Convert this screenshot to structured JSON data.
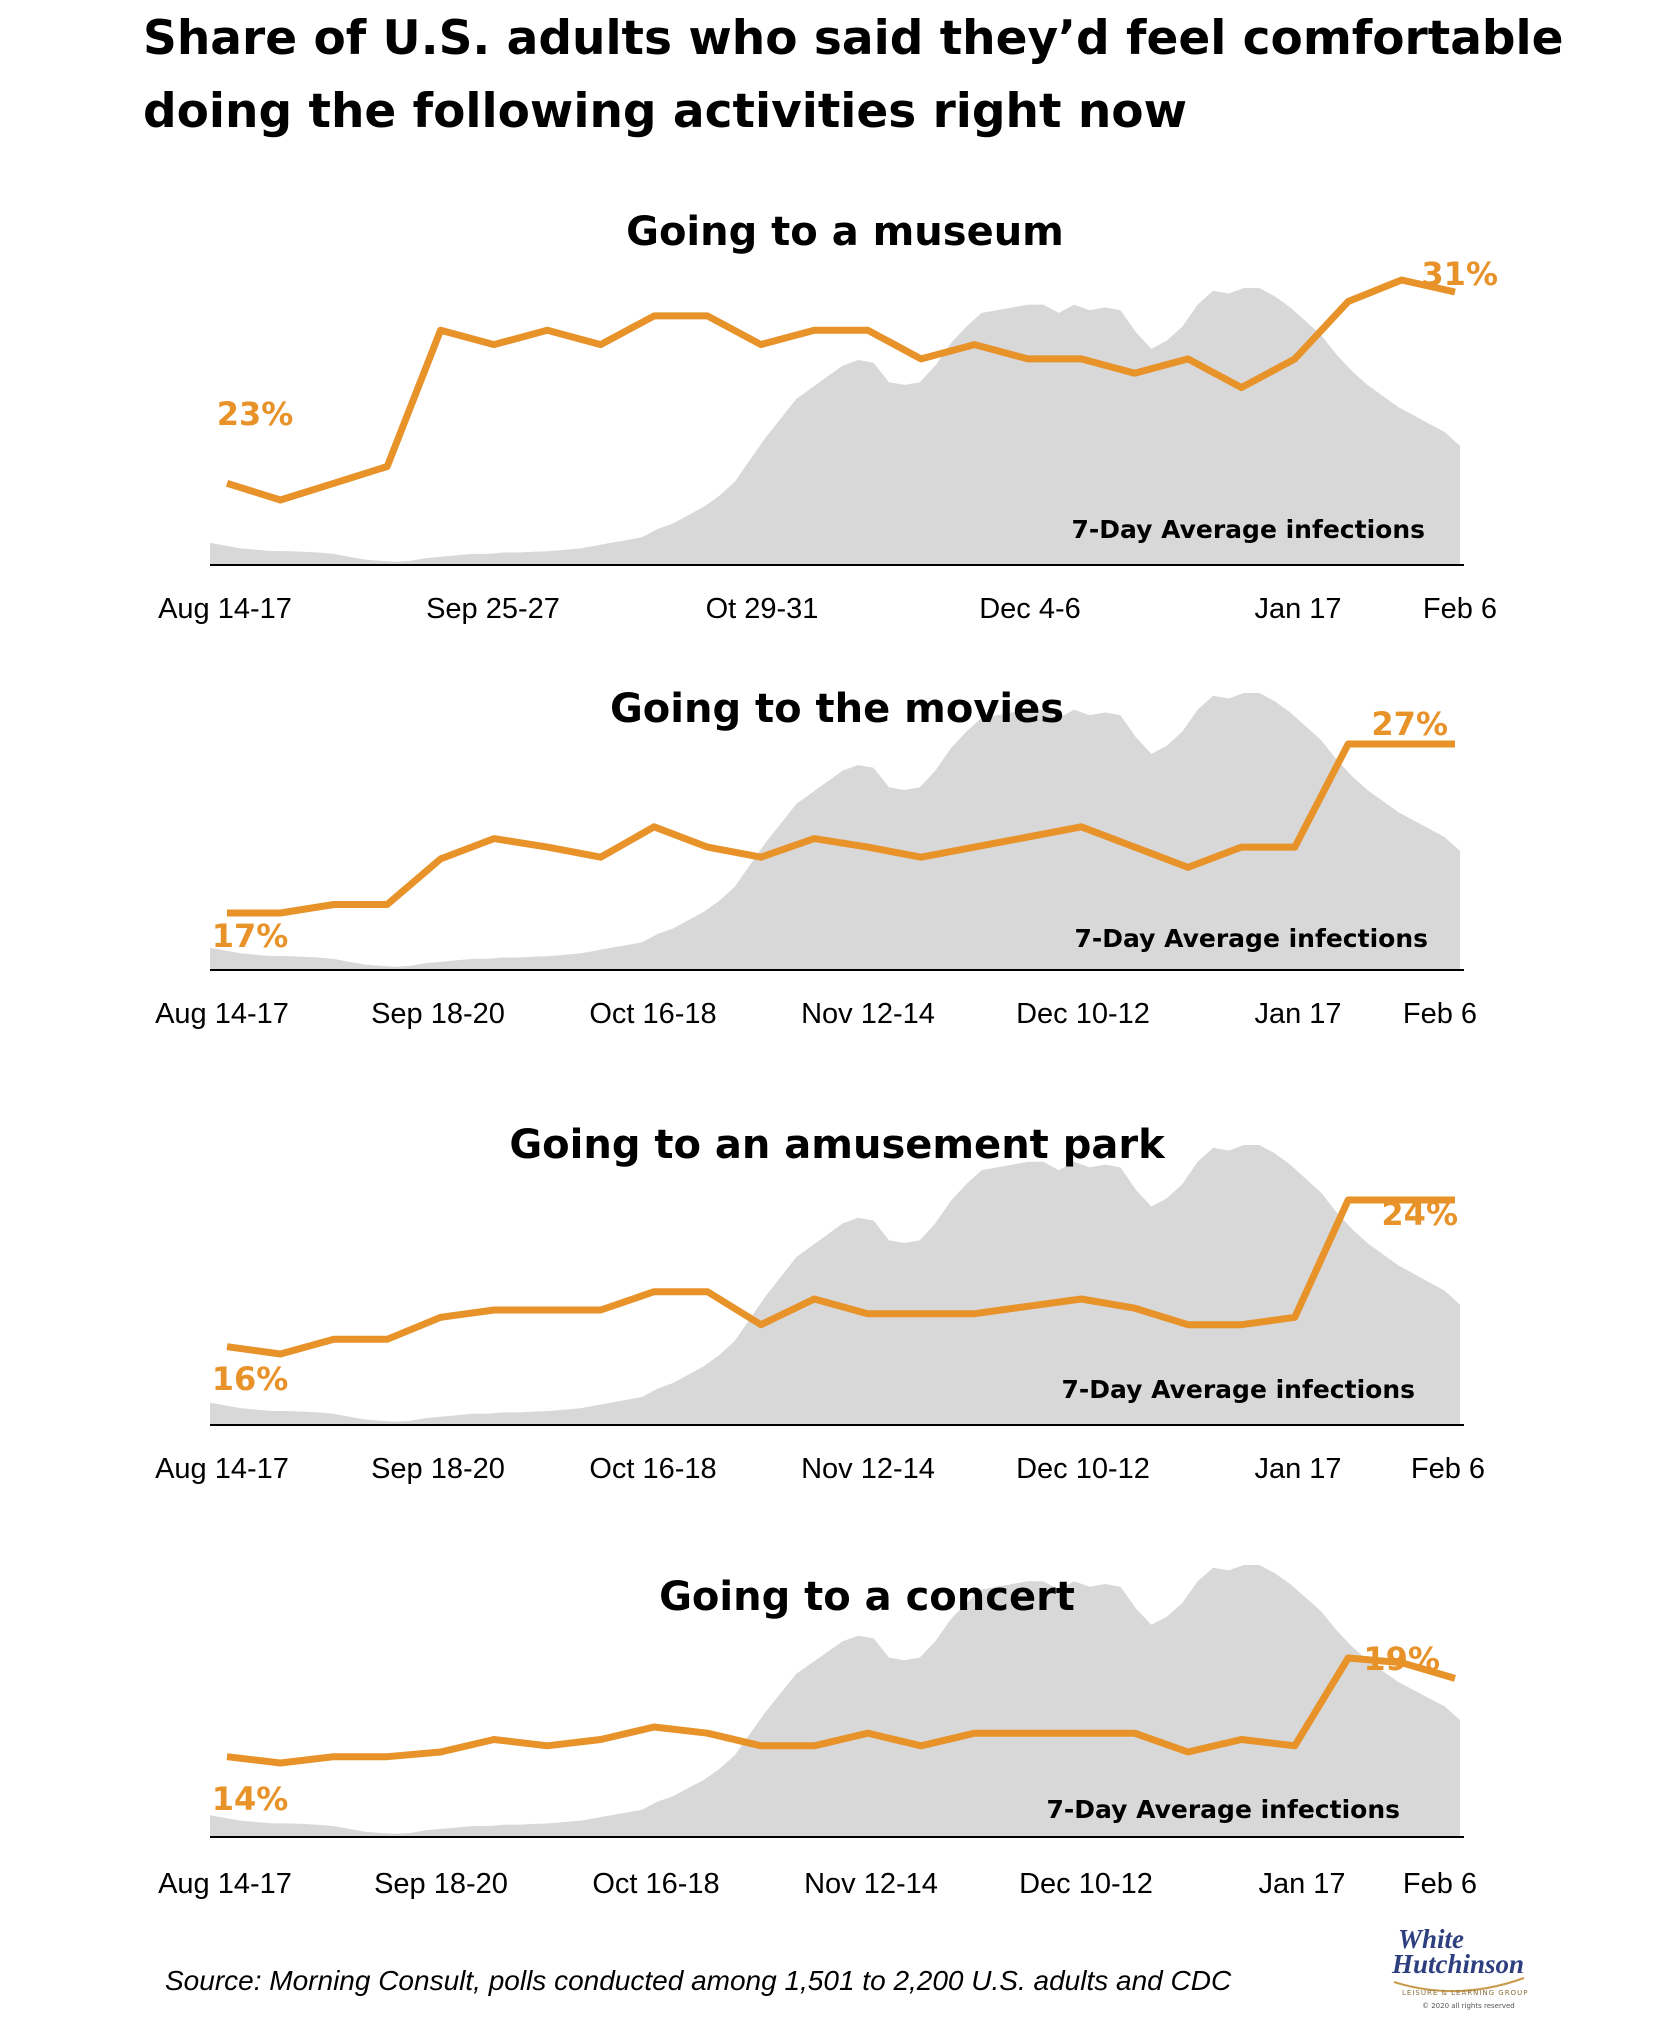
{
  "title": "Share of U.S. adults who said they’d feel comfortable doing the following activities right now",
  "source": "Source: Morning Consult, polls conducted among 1,501 to 2,200 U.S. adults and CDC",
  "logo": {
    "line1": "White",
    "line2": "Hutchinson",
    "tagline": "LEISURE & LEARNING GROUP",
    "copyright": "© 2020 all rights reserved"
  },
  "colors": {
    "line": "#E8922A",
    "area": "#D8D8D8",
    "label": "#E8922A",
    "axis": "#000000"
  },
  "infection_curve": [
    0.08,
    0.07,
    0.06,
    0.055,
    0.05,
    0.05,
    0.048,
    0.045,
    0.04,
    0.03,
    0.02,
    0.015,
    0.012,
    0.015,
    0.025,
    0.03,
    0.035,
    0.04,
    0.04,
    0.045,
    0.045,
    0.048,
    0.05,
    0.055,
    0.06,
    0.07,
    0.08,
    0.09,
    0.1,
    0.13,
    0.15,
    0.18,
    0.21,
    0.25,
    0.3,
    0.38,
    0.46,
    0.53,
    0.6,
    0.64,
    0.68,
    0.72,
    0.74,
    0.73,
    0.66,
    0.65,
    0.66,
    0.72,
    0.8,
    0.86,
    0.91,
    0.92,
    0.93,
    0.94,
    0.94,
    0.91,
    0.94,
    0.92,
    0.93,
    0.92,
    0.84,
    0.78,
    0.81,
    0.86,
    0.94,
    0.99,
    0.98,
    1.0,
    1.0,
    0.97,
    0.93,
    0.88,
    0.83,
    0.76,
    0.7,
    0.65,
    0.61,
    0.57,
    0.54,
    0.51,
    0.48,
    0.43
  ],
  "chart_data": [
    {
      "type": "line",
      "title": "Going to a museum",
      "x_labels": [
        "Aug 14-17",
        "Sep 25-27",
        "Ot 29-31",
        "Dec 4-6",
        "Jan 17",
        "Feb 6"
      ],
      "series": [
        {
          "values": [
            23,
            22.3,
            23,
            23.7,
            29.4,
            28.8,
            29.4,
            28.8,
            30,
            30,
            28.8,
            29.4,
            29.4,
            28.2,
            28.8,
            28.2,
            28.2,
            27.6,
            28.2,
            27,
            28.2,
            30.6,
            31.5,
            31
          ]
        }
      ],
      "start_label": "23%",
      "end_label": "31%",
      "area_label": "7-Day Average infections",
      "ylim": [
        17,
        34
      ]
    },
    {
      "type": "line",
      "title": "Going to the movies",
      "x_labels": [
        "Aug 14-17",
        "Sep 18-20",
        "Oct 16-18",
        "Nov 12-14",
        "Dec 10-12",
        "Jan 17",
        "Feb 6"
      ],
      "series": [
        {
          "values": [
            17,
            17,
            17.5,
            17.5,
            20.2,
            21.4,
            20.9,
            20.3,
            22.1,
            20.9,
            20.3,
            21.4,
            20.9,
            20.3,
            20.9,
            21.5,
            22.1,
            20.9,
            19.7,
            20.9,
            20.9,
            27,
            27,
            27
          ]
        }
      ],
      "start_label": "17%",
      "end_label": "27%",
      "area_label": "7-Day Average infections",
      "ylim": [
        12,
        30
      ]
    },
    {
      "type": "line",
      "title": "Going to an amusement park",
      "x_labels": [
        "Aug 14-17",
        "Sep 18-20",
        "Oct 16-18",
        "Nov 12-14",
        "Dec 10-12",
        "Jan 17",
        "Feb 6"
      ],
      "series": [
        {
          "values": [
            16,
            15.6,
            16.4,
            16.4,
            17.6,
            18,
            18,
            18,
            19,
            19,
            17.2,
            18.6,
            17.8,
            17.8,
            17.8,
            18.2,
            18.6,
            18.1,
            17.2,
            17.2,
            17.6,
            24,
            24,
            24
          ]
        }
      ],
      "start_label": "16%",
      "end_label": "24%",
      "area_label": "7-Day Average infections",
      "ylim": [
        13,
        26
      ]
    },
    {
      "type": "line",
      "title": "Going to a concert",
      "x_labels": [
        "Aug 14-17",
        "Sep 18-20",
        "Oct 16-18",
        "Nov 12-14",
        "Dec 10-12",
        "Jan 17",
        "Feb 6"
      ],
      "series": [
        {
          "values": [
            14,
            13.6,
            14,
            14,
            14.3,
            15.1,
            14.7,
            15.1,
            15.9,
            15.5,
            14.7,
            14.7,
            15.5,
            14.7,
            15.5,
            15.5,
            15.5,
            15.5,
            14.3,
            15.1,
            14.7,
            20.3,
            20,
            19
          ]
        }
      ],
      "start_label": "14%",
      "end_label": "19%",
      "area_label": "7-Day Average infections",
      "ylim": [
        11,
        22
      ]
    }
  ]
}
